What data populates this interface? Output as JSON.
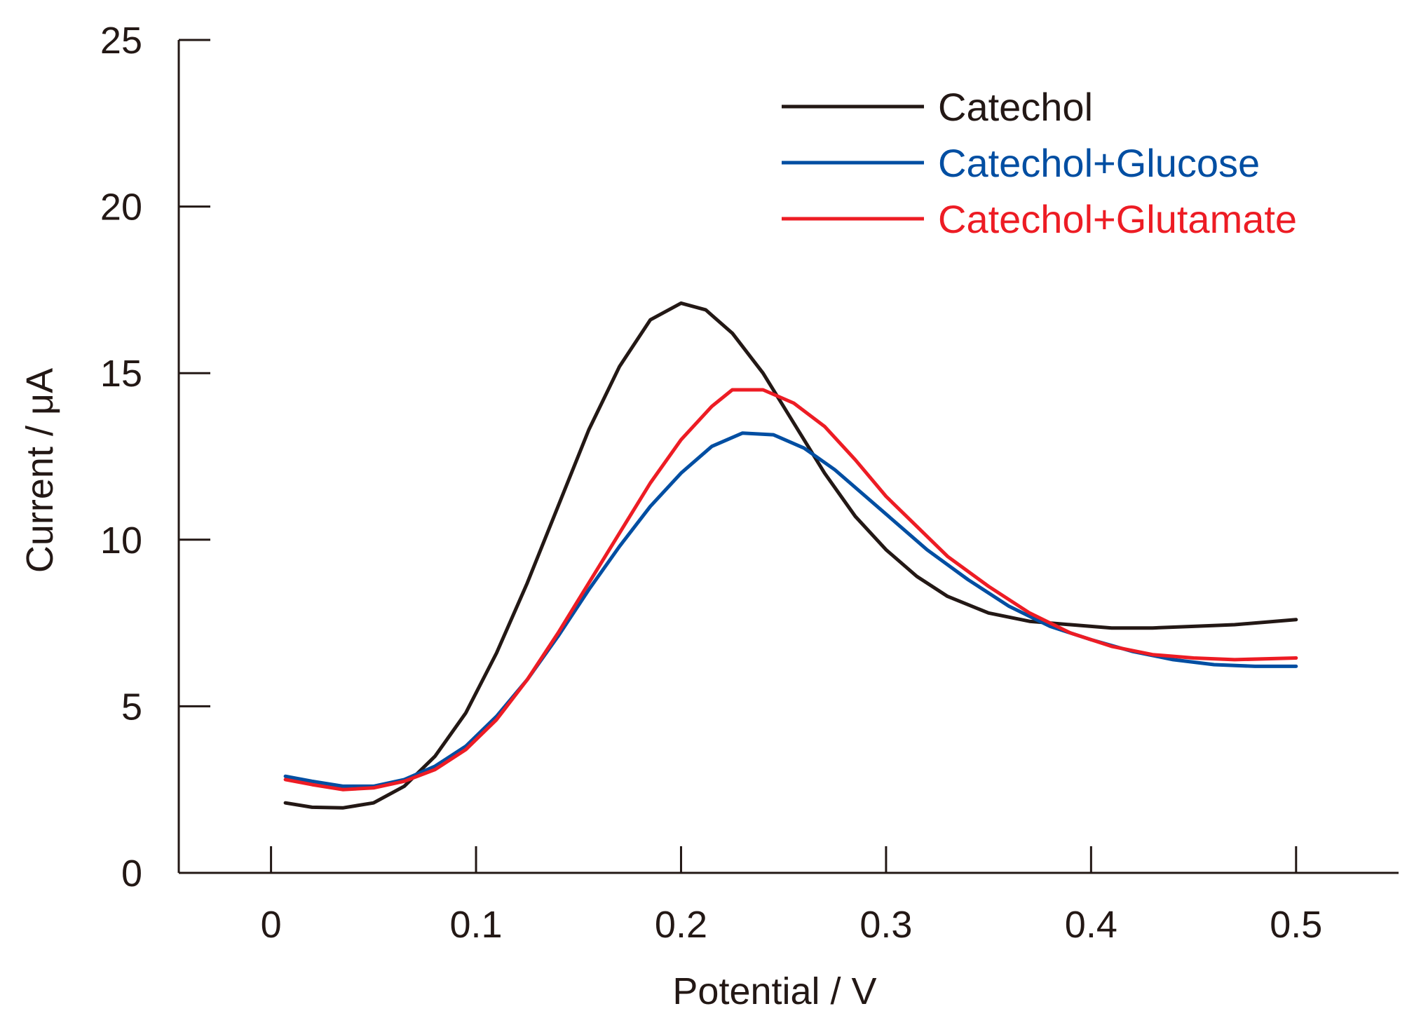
{
  "chart_data": {
    "type": "line",
    "title": "",
    "xlabel": "Potential / V",
    "ylabel": "Current / μA",
    "xlim": [
      -0.045,
      0.55
    ],
    "ylim": [
      0,
      25
    ],
    "x_ticks": [
      0,
      0.1,
      0.2,
      0.3,
      0.4,
      0.5
    ],
    "x_tick_labels": [
      "0",
      "0.1",
      "0.2",
      "0.3",
      "0.4",
      "0.5"
    ],
    "y_ticks": [
      0,
      5,
      10,
      15,
      20,
      25
    ],
    "y_tick_labels": [
      "0",
      "5",
      "10",
      "15",
      "20",
      "25"
    ],
    "legend_position": "top-right",
    "grid": false,
    "series": [
      {
        "name": "Catechol",
        "color": "#231815",
        "points": [
          [
            0.007,
            2.1
          ],
          [
            0.02,
            1.97
          ],
          [
            0.035,
            1.95
          ],
          [
            0.05,
            2.1
          ],
          [
            0.065,
            2.6
          ],
          [
            0.08,
            3.5
          ],
          [
            0.095,
            4.8
          ],
          [
            0.11,
            6.6
          ],
          [
            0.125,
            8.7
          ],
          [
            0.14,
            11.0
          ],
          [
            0.155,
            13.3
          ],
          [
            0.17,
            15.2
          ],
          [
            0.185,
            16.6
          ],
          [
            0.2,
            17.1
          ],
          [
            0.212,
            16.9
          ],
          [
            0.225,
            16.2
          ],
          [
            0.24,
            15.0
          ],
          [
            0.255,
            13.5
          ],
          [
            0.27,
            12.0
          ],
          [
            0.285,
            10.7
          ],
          [
            0.3,
            9.7
          ],
          [
            0.315,
            8.9
          ],
          [
            0.33,
            8.3
          ],
          [
            0.35,
            7.8
          ],
          [
            0.37,
            7.55
          ],
          [
            0.39,
            7.45
          ],
          [
            0.41,
            7.35
          ],
          [
            0.43,
            7.35
          ],
          [
            0.45,
            7.4
          ],
          [
            0.47,
            7.45
          ],
          [
            0.5,
            7.6
          ]
        ]
      },
      {
        "name": "Catechol+Glucose",
        "color": "#004ea2",
        "points": [
          [
            0.007,
            2.9
          ],
          [
            0.02,
            2.75
          ],
          [
            0.035,
            2.6
          ],
          [
            0.05,
            2.6
          ],
          [
            0.065,
            2.8
          ],
          [
            0.08,
            3.2
          ],
          [
            0.095,
            3.8
          ],
          [
            0.11,
            4.7
          ],
          [
            0.125,
            5.8
          ],
          [
            0.14,
            7.1
          ],
          [
            0.155,
            8.5
          ],
          [
            0.17,
            9.8
          ],
          [
            0.185,
            11.0
          ],
          [
            0.2,
            12.0
          ],
          [
            0.215,
            12.8
          ],
          [
            0.23,
            13.2
          ],
          [
            0.245,
            13.15
          ],
          [
            0.26,
            12.75
          ],
          [
            0.275,
            12.1
          ],
          [
            0.29,
            11.3
          ],
          [
            0.305,
            10.5
          ],
          [
            0.32,
            9.7
          ],
          [
            0.34,
            8.8
          ],
          [
            0.36,
            8.0
          ],
          [
            0.38,
            7.4
          ],
          [
            0.4,
            7.0
          ],
          [
            0.42,
            6.65
          ],
          [
            0.44,
            6.4
          ],
          [
            0.46,
            6.25
          ],
          [
            0.48,
            6.2
          ],
          [
            0.5,
            6.2
          ]
        ]
      },
      {
        "name": "Catechol+Glutamate",
        "color": "#ed1c24",
        "points": [
          [
            0.007,
            2.8
          ],
          [
            0.02,
            2.65
          ],
          [
            0.035,
            2.5
          ],
          [
            0.05,
            2.55
          ],
          [
            0.065,
            2.75
          ],
          [
            0.08,
            3.1
          ],
          [
            0.095,
            3.7
          ],
          [
            0.11,
            4.6
          ],
          [
            0.125,
            5.8
          ],
          [
            0.14,
            7.2
          ],
          [
            0.155,
            8.7
          ],
          [
            0.17,
            10.2
          ],
          [
            0.185,
            11.7
          ],
          [
            0.2,
            13.0
          ],
          [
            0.215,
            14.0
          ],
          [
            0.225,
            14.5
          ],
          [
            0.24,
            14.5
          ],
          [
            0.255,
            14.1
          ],
          [
            0.27,
            13.4
          ],
          [
            0.285,
            12.4
          ],
          [
            0.3,
            11.3
          ],
          [
            0.315,
            10.4
          ],
          [
            0.33,
            9.5
          ],
          [
            0.35,
            8.6
          ],
          [
            0.37,
            7.8
          ],
          [
            0.39,
            7.2
          ],
          [
            0.41,
            6.8
          ],
          [
            0.43,
            6.55
          ],
          [
            0.45,
            6.45
          ],
          [
            0.47,
            6.4
          ],
          [
            0.5,
            6.45
          ]
        ]
      }
    ]
  }
}
